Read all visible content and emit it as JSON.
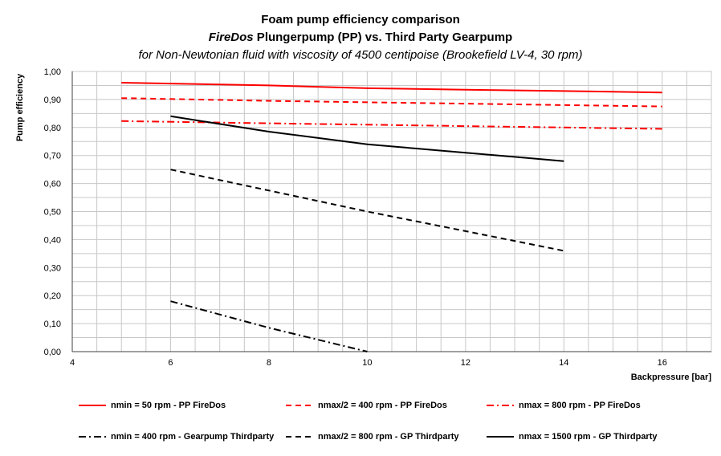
{
  "title": {
    "line1": "Foam pump efficiency comparison",
    "line2_brand": "FireDos",
    "line2_rest": " Plungerpump (PP) vs. Third Party Gearpump",
    "line3": "for Non-Newtonian fluid with viscosity of 4500 centipoise (Brookefield LV-4, 30 rpm)"
  },
  "chart_data": {
    "type": "line",
    "title": "Foam pump efficiency comparison",
    "xlabel": "Backpressure [bar]",
    "ylabel": "Pump efficiency",
    "xlim": [
      4,
      17
    ],
    "ylim": [
      0,
      1
    ],
    "x_ticks": [
      "4",
      "6",
      "8",
      "10",
      "12",
      "14",
      "16"
    ],
    "y_ticks": [
      "0,00",
      "0,10",
      "0,20",
      "0,30",
      "0,40",
      "0,50",
      "0,60",
      "0,70",
      "0,80",
      "0,90",
      "1,00"
    ],
    "grid": true,
    "legend_position": "bottom",
    "series": [
      {
        "name": "nmin = 50 rpm - PP FireDos",
        "color": "#ff0000",
        "dash": "solid",
        "x": [
          5,
          8,
          10,
          12,
          14,
          16
        ],
        "y": [
          0.96,
          0.95,
          0.94,
          0.935,
          0.93,
          0.925
        ]
      },
      {
        "name": "nmax/2 = 400 rpm - PP FireDos",
        "color": "#ff0000",
        "dash": "dash",
        "x": [
          5,
          8,
          10,
          12,
          14,
          16
        ],
        "y": [
          0.905,
          0.895,
          0.89,
          0.885,
          0.88,
          0.875
        ]
      },
      {
        "name": "nmax = 800 rpm - PP FireDos",
        "color": "#ff0000",
        "dash": "dashdot",
        "x": [
          5,
          8,
          10,
          12,
          14,
          16
        ],
        "y": [
          0.823,
          0.815,
          0.81,
          0.805,
          0.8,
          0.795
        ]
      },
      {
        "name": "nmin = 400 rpm - Gearpump Thirdparty",
        "color": "#000000",
        "dash": "dashdot",
        "x": [
          6,
          8,
          10
        ],
        "y": [
          0.18,
          0.085,
          0.0
        ]
      },
      {
        "name": "nmax/2 = 800 rpm - GP Thirdparty",
        "color": "#000000",
        "dash": "dash",
        "x": [
          6,
          8,
          10,
          12,
          14
        ],
        "y": [
          0.65,
          0.575,
          0.5,
          0.43,
          0.36
        ]
      },
      {
        "name": "nmax = 1500 rpm - GP Thirdparty",
        "color": "#000000",
        "dash": "solid",
        "x": [
          6,
          8,
          10,
          11,
          12,
          14
        ],
        "y": [
          0.84,
          0.785,
          0.74,
          0.725,
          0.71,
          0.68
        ]
      }
    ]
  }
}
